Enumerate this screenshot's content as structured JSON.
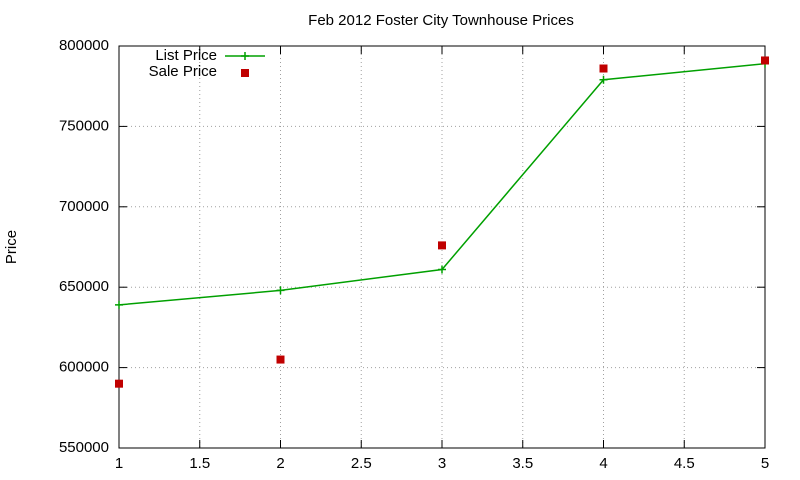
{
  "chart_data": {
    "type": "line",
    "title": "Feb 2012 Foster City Townhouse Prices",
    "y_label": "Price",
    "x": [
      1,
      2,
      3,
      4,
      5
    ],
    "series": [
      {
        "name": "List Price",
        "color": "#00a000",
        "style": "linespoints",
        "values": [
          639000,
          648000,
          661000,
          779000,
          789000
        ]
      },
      {
        "name": "Sale Price",
        "color": "#c00000",
        "style": "points",
        "values": [
          590000,
          605000,
          676000,
          786000,
          791000
        ]
      }
    ],
    "xlim": [
      1,
      5
    ],
    "xticks": [
      1,
      1.5,
      2,
      2.5,
      3,
      3.5,
      4,
      4.5,
      5
    ],
    "ylim": [
      550000,
      800000
    ],
    "yticks": [
      550000,
      600000,
      650000,
      700000,
      750000,
      800000
    ],
    "grid": true,
    "legend_position": "top-left"
  }
}
